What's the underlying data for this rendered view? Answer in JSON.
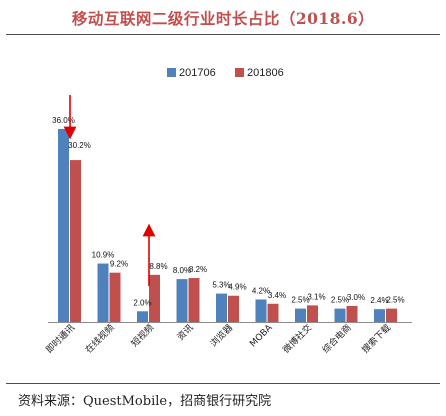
{
  "title": "移动互联网二级行业时长占比（2018.6）",
  "source": "资料来源：QuestMobile，招商银行研究院",
  "chart_data": {
    "type": "bar",
    "title": "移动互联网二级行业时长占比（2018.6）",
    "categories": [
      "即时通讯",
      "在线视频",
      "短视频",
      "资讯",
      "浏览器",
      "MOBA",
      "微博社交",
      "综合电商",
      "搜索下载"
    ],
    "series": [
      {
        "name": "201706",
        "color": "#4f81bd",
        "values": [
          36.0,
          10.9,
          2.0,
          8.0,
          5.3,
          4.2,
          2.5,
          2.5,
          2.4
        ],
        "labels": [
          "36.0%",
          "10.9%",
          "2.0%",
          "8.0%",
          "5.3%",
          "4.2%",
          "2.5%",
          "2.5%",
          "2.4%"
        ]
      },
      {
        "name": "201806",
        "color": "#c0504d",
        "values": [
          30.2,
          9.2,
          8.8,
          8.2,
          4.9,
          3.4,
          3.1,
          3.0,
          2.5
        ],
        "labels": [
          "30.2%",
          "9.2%",
          "8.8%",
          "8.2%",
          "4.9%",
          "3.4%",
          "3.1%",
          "3.0%",
          "2.5%"
        ]
      }
    ],
    "ylim": [
      0,
      38
    ],
    "grid": false,
    "legend_position": "top-center",
    "annotations": [
      {
        "type": "arrow",
        "direction": "down",
        "category": "即时通讯",
        "color": "#e00000"
      },
      {
        "type": "arrow",
        "direction": "up",
        "category": "短视频",
        "color": "#e00000"
      }
    ]
  }
}
